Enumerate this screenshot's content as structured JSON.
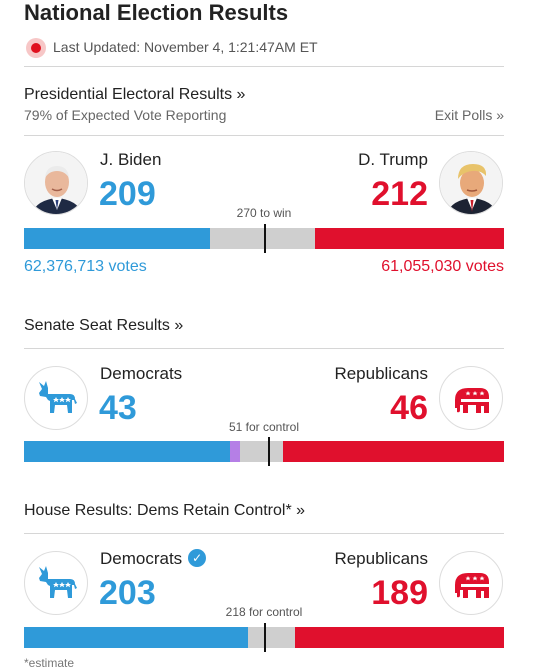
{
  "header": {
    "title": "National Election Results",
    "last_updated": "Last Updated: November 4, 1:21:47AM ET"
  },
  "presidential": {
    "heading": "Presidential Electoral Results »",
    "reporting": "79% of Expected Vote Reporting",
    "exit_polls_link": "Exit Polls »",
    "dem": {
      "name": "J. Biden",
      "count": "209",
      "votes": "62,376,713 votes",
      "icon": "biden-portrait"
    },
    "rep": {
      "name": "D. Trump",
      "count": "212",
      "votes": "61,055,030 votes",
      "icon": "trump-portrait"
    },
    "threshold": "270 to win",
    "bar": {
      "total": 538,
      "dem": 209,
      "other": 0,
      "rep": 212,
      "threshold": 270
    }
  },
  "senate": {
    "heading": "Senate Seat Results »",
    "dem": {
      "name": "Democrats",
      "count": "43",
      "icon": "donkey-icon"
    },
    "rep": {
      "name": "Republicans",
      "count": "46",
      "icon": "elephant-icon"
    },
    "threshold": "51 for control",
    "bar": {
      "total": 100,
      "dem": 43,
      "other": 2,
      "rep": 46,
      "threshold": 51
    }
  },
  "house": {
    "heading": "House Results: Dems Retain Control* »",
    "dem": {
      "name": "Democrats",
      "count": "203",
      "icon": "donkey-icon",
      "winner_icon": "checkmark-icon"
    },
    "rep": {
      "name": "Republicans",
      "count": "189",
      "icon": "elephant-icon"
    },
    "threshold": "218 for control",
    "bar": {
      "total": 435,
      "dem": 203,
      "other": 0,
      "rep": 189,
      "threshold": 218
    }
  },
  "footnote": "*estimate",
  "colors": {
    "dem": "#2f9ad9",
    "rep": "#e0102d",
    "other": "#b57fe6",
    "undecided": "#cfcfcf",
    "tick": "#111111"
  }
}
